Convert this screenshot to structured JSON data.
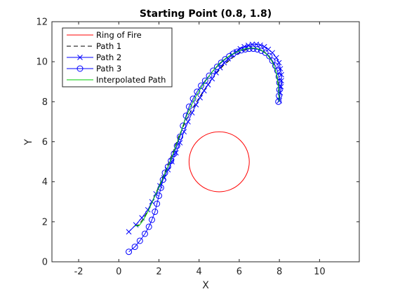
{
  "chart_data": {
    "type": "line",
    "title": "Starting Point (0.8, 1.8)",
    "xlabel": "X",
    "ylabel": "Y",
    "xlim": [
      -3.33,
      11.98
    ],
    "ylim": [
      0,
      12
    ],
    "xticks": [
      -2,
      0,
      2,
      4,
      6,
      8,
      10
    ],
    "yticks": [
      0,
      2,
      4,
      6,
      8,
      10,
      12
    ],
    "grid": false,
    "legend_position": "top-left",
    "series": [
      {
        "name": "Ring of Fire",
        "kind": "circle",
        "center": [
          5,
          5
        ],
        "radius": 1.5,
        "color": "#ff0000",
        "line_style": "solid",
        "marker": "none"
      },
      {
        "name": "Path 1",
        "color": "#000000",
        "line_style": "dashed",
        "marker": "none",
        "x": [
          0.8,
          1.0,
          1.25,
          1.5,
          1.7,
          1.9,
          2.1,
          2.3,
          2.5,
          2.75,
          3.0,
          3.3,
          3.6,
          4.0,
          4.4,
          4.8,
          5.2,
          5.6,
          6.0,
          6.4,
          6.8,
          7.2,
          7.5,
          7.75,
          7.9,
          8.0,
          8.0
        ],
        "y": [
          1.8,
          1.85,
          2.2,
          2.65,
          3.1,
          3.55,
          4.0,
          4.5,
          5.0,
          5.6,
          6.3,
          6.95,
          7.55,
          8.2,
          8.8,
          9.35,
          9.8,
          10.15,
          10.45,
          10.62,
          10.67,
          10.55,
          10.25,
          9.8,
          9.2,
          8.6,
          8.0
        ]
      },
      {
        "name": "Path 2",
        "color": "#0000ff",
        "line_style": "solid",
        "marker": "x",
        "x": [
          0.5,
          0.85,
          1.15,
          1.45,
          1.65,
          1.85,
          2.05,
          2.25,
          2.45,
          2.65,
          2.85,
          3.05,
          3.25,
          3.45,
          3.65,
          3.85,
          4.05,
          4.25,
          4.45,
          4.65,
          4.85,
          5.05,
          5.25,
          5.45,
          5.65,
          5.85,
          6.05,
          6.25,
          6.45,
          6.65,
          6.85,
          7.05,
          7.25,
          7.45,
          7.65,
          7.85,
          7.98,
          8.05,
          8.1,
          8.1,
          8.08,
          8.04,
          8.0
        ],
        "y": [
          1.5,
          1.85,
          2.2,
          2.6,
          3.0,
          3.4,
          3.8,
          4.2,
          4.6,
          5.0,
          5.45,
          5.95,
          6.5,
          7.0,
          7.45,
          7.85,
          8.2,
          8.55,
          8.85,
          9.15,
          9.45,
          9.7,
          9.95,
          10.15,
          10.35,
          10.5,
          10.65,
          10.75,
          10.82,
          10.87,
          10.87,
          10.83,
          10.75,
          10.62,
          10.45,
          10.2,
          9.95,
          9.65,
          9.35,
          9.05,
          8.75,
          8.45,
          8.05
        ]
      },
      {
        "name": "Path 3",
        "color": "#0000ff",
        "line_style": "solid",
        "marker": "circle",
        "x": [
          0.5,
          0.8,
          1.05,
          1.3,
          1.5,
          1.65,
          1.8,
          1.9,
          2.0,
          2.1,
          2.2,
          2.3,
          2.45,
          2.6,
          2.75,
          2.9,
          3.05,
          3.2,
          3.35,
          3.5,
          3.7,
          3.9,
          4.1,
          4.3,
          4.5,
          4.7,
          4.9,
          5.1,
          5.3,
          5.5,
          5.7,
          5.9,
          6.1,
          6.3,
          6.5,
          6.7,
          6.9,
          7.1,
          7.3,
          7.5,
          7.65,
          7.8,
          7.9,
          7.97,
          8.0,
          8.0,
          7.98,
          7.95
        ],
        "y": [
          0.5,
          0.75,
          1.05,
          1.4,
          1.75,
          2.1,
          2.5,
          2.9,
          3.3,
          3.7,
          4.1,
          4.45,
          4.75,
          5.05,
          5.4,
          5.8,
          6.25,
          6.8,
          7.3,
          7.75,
          8.15,
          8.5,
          8.8,
          9.05,
          9.3,
          9.55,
          9.75,
          9.95,
          10.12,
          10.27,
          10.4,
          10.5,
          10.57,
          10.62,
          10.65,
          10.65,
          10.62,
          10.55,
          10.45,
          10.28,
          10.05,
          9.8,
          9.55,
          9.25,
          8.95,
          8.6,
          8.3,
          8.0
        ]
      },
      {
        "name": "Interpolated Path",
        "color": "#00cc00",
        "line_style": "solid",
        "marker": "none",
        "x": [
          0.8,
          1.0,
          1.2,
          1.45,
          1.65,
          1.85,
          2.05,
          2.25,
          2.45,
          2.65,
          2.85,
          3.05,
          3.25,
          3.5,
          3.8,
          4.1,
          4.4,
          4.7,
          5.0,
          5.3,
          5.6,
          5.9,
          6.2,
          6.5,
          6.8,
          7.1,
          7.4,
          7.65,
          7.85,
          7.95,
          8.0
        ],
        "y": [
          1.8,
          1.8,
          2.05,
          2.5,
          2.95,
          3.4,
          3.85,
          4.3,
          4.75,
          5.25,
          5.8,
          6.35,
          6.95,
          7.6,
          8.2,
          8.7,
          9.15,
          9.55,
          9.9,
          10.15,
          10.35,
          10.5,
          10.62,
          10.68,
          10.68,
          10.58,
          10.35,
          10.0,
          9.45,
          8.75,
          8.0
        ]
      }
    ]
  }
}
